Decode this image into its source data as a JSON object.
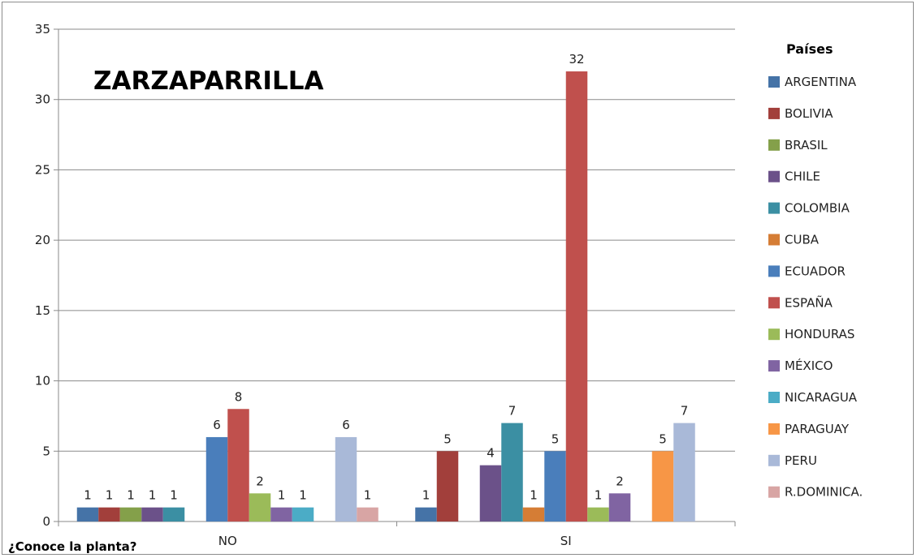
{
  "chart_data": {
    "type": "bar",
    "title": "ZARZAPARRILLA",
    "xlabel": "¿Conoce  la planta?",
    "ylabel": "",
    "ylim": [
      0,
      35
    ],
    "yticks": [
      0,
      5,
      10,
      15,
      20,
      25,
      30,
      35
    ],
    "categories": [
      "NO",
      "SI"
    ],
    "legend_title": "Países",
    "legend_position": "right",
    "grid": true,
    "series": [
      {
        "name": "ARGENTINA",
        "color": "#4573a7",
        "values": [
          1,
          1
        ]
      },
      {
        "name": "BOLIVIA",
        "color": "#a23f3b",
        "values": [
          1,
          5
        ]
      },
      {
        "name": "BRASIL",
        "color": "#84a04a",
        "values": [
          1,
          null
        ]
      },
      {
        "name": "CHILE",
        "color": "#6b5189",
        "values": [
          1,
          4
        ]
      },
      {
        "name": "COLOMBIA",
        "color": "#3b8fa3",
        "values": [
          1,
          7
        ]
      },
      {
        "name": "CUBA",
        "color": "#d57d35",
        "values": [
          null,
          1
        ]
      },
      {
        "name": "ECUADOR",
        "color": "#4a7ebb",
        "values": [
          6,
          5
        ]
      },
      {
        "name": "ESPAÑA",
        "color": "#c0504d",
        "values": [
          8,
          32
        ]
      },
      {
        "name": "HONDURAS",
        "color": "#9bbb59",
        "values": [
          2,
          1
        ]
      },
      {
        "name": "MÉXICO",
        "color": "#8064a2",
        "values": [
          1,
          2
        ]
      },
      {
        "name": "NICARAGUA",
        "color": "#4bacc6",
        "values": [
          1,
          null
        ]
      },
      {
        "name": "PARAGUAY",
        "color": "#f79646",
        "values": [
          null,
          5
        ]
      },
      {
        "name": "PERU",
        "color": "#a9b9d8",
        "values": [
          6,
          7
        ]
      },
      {
        "name": "R.DOMINICA.",
        "color": "#d8a5a4",
        "values": [
          1,
          null
        ]
      }
    ]
  }
}
